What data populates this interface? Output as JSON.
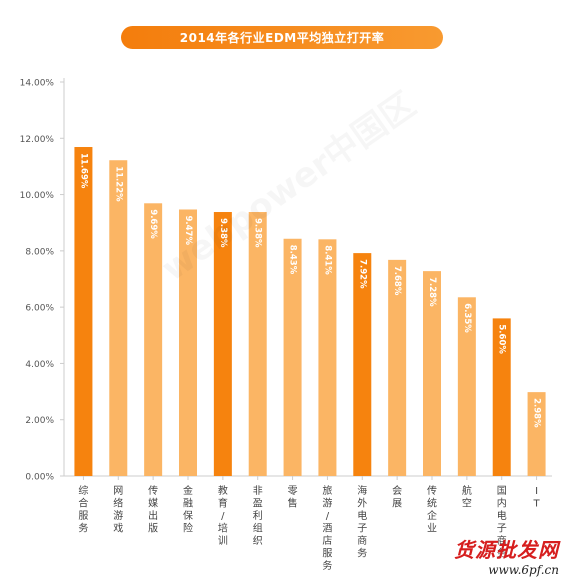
{
  "chart_data": {
    "type": "bar",
    "title": "2014年各行业EDM平均独立打开率",
    "categories": [
      "综合服务",
      "网络游戏",
      "传媒出版",
      "金融保险",
      "教育/培训",
      "非盈利组织",
      "零售",
      "旅游/酒店服务",
      "海外电子商务",
      "会展",
      "传统企业",
      "航空",
      "国内电子商务",
      "IT"
    ],
    "values": [
      11.69,
      11.22,
      9.69,
      9.47,
      9.38,
      9.38,
      8.43,
      8.41,
      7.92,
      7.68,
      7.28,
      6.35,
      5.6,
      2.98
    ],
    "value_labels": [
      "11.69%",
      "11.22%",
      "9.69%",
      "9.47%",
      "9.38%",
      "9.38%",
      "8.43%",
      "8.41%",
      "7.92%",
      "7.68%",
      "7.28%",
      "6.35%",
      "5.60%",
      "2.98%"
    ],
    "highlight": [
      true,
      false,
      false,
      false,
      true,
      false,
      false,
      false,
      true,
      false,
      false,
      false,
      true,
      false
    ],
    "ylim": [
      0,
      14
    ],
    "yticks": [
      "0.00%",
      "2.00%",
      "4.00%",
      "6.00%",
      "8.00%",
      "10.00%",
      "12.00%",
      "14.00%"
    ],
    "xlabel": "",
    "ylabel": "",
    "colors": {
      "dark": "#f6830e",
      "light": "#fbb564",
      "axis": "#cccccc",
      "tick_text": "#555555",
      "grid": "none"
    },
    "grid": false,
    "legend": "none"
  },
  "watermark": "webpower中国区",
  "brand": {
    "text": "货源批发网",
    "url": "www.6pf.cn"
  }
}
